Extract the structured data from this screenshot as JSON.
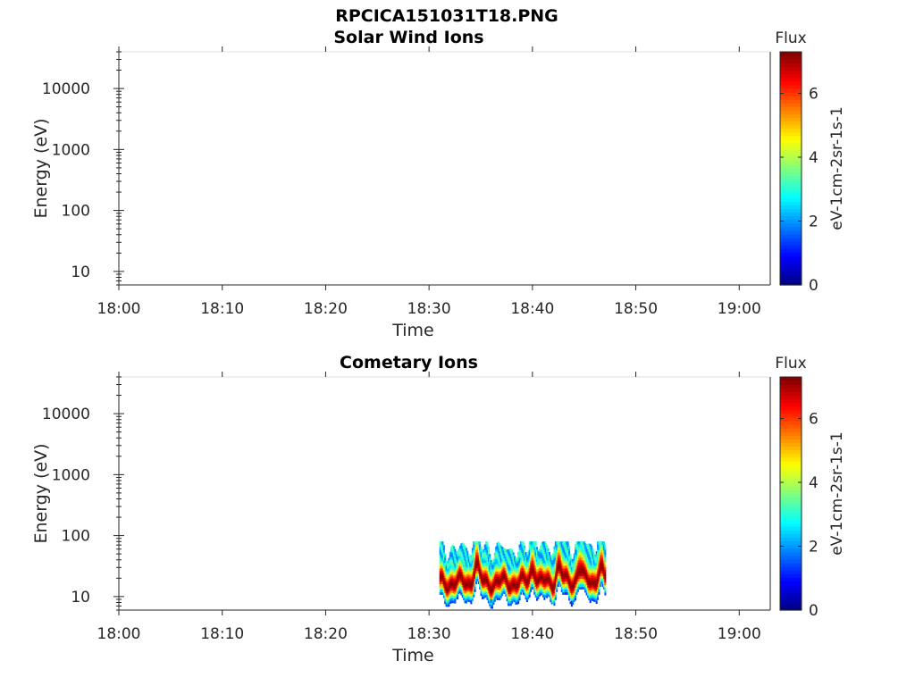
{
  "figure_title": "RPCICA151031T18.PNG",
  "chart_data": [
    {
      "type": "heatmap",
      "title": "Solar Wind Ions",
      "xlabel": "Time",
      "ylabel": "Energy (eV)",
      "x_ticks": [
        "18:00",
        "18:10",
        "18:20",
        "18:30",
        "18:40",
        "18:50",
        "19:00"
      ],
      "x_range_minutes": [
        0,
        63
      ],
      "y_scale": "log",
      "y_range": [
        6,
        40000
      ],
      "y_ticks": [
        {
          "value": 10,
          "label": "10"
        },
        {
          "value": 100,
          "label": "100"
        },
        {
          "value": 1000,
          "label": "1000"
        },
        {
          "value": 10000,
          "label": "10000"
        }
      ],
      "colorbar": {
        "title": "Flux",
        "label": "eV-1cm-2sr-1s-1",
        "range": [
          0,
          7.3
        ],
        "ticks": [
          "0",
          "2",
          "4",
          "6"
        ],
        "colormap": "jet"
      },
      "data": "empty"
    },
    {
      "type": "heatmap",
      "title": "Cometary Ions",
      "xlabel": "Time",
      "ylabel": "Energy (eV)",
      "x_ticks": [
        "18:00",
        "18:10",
        "18:20",
        "18:30",
        "18:40",
        "18:50",
        "19:00"
      ],
      "x_range_minutes": [
        0,
        63
      ],
      "y_scale": "log",
      "y_range": [
        6,
        40000
      ],
      "y_ticks": [
        {
          "value": 10,
          "label": "10"
        },
        {
          "value": 100,
          "label": "100"
        },
        {
          "value": 1000,
          "label": "1000"
        },
        {
          "value": 10000,
          "label": "10000"
        }
      ],
      "colorbar": {
        "title": "Flux",
        "label": "eV-1cm-2sr-1s-1",
        "range": [
          0,
          7.3
        ],
        "ticks": [
          "0",
          "2",
          "4",
          "6"
        ],
        "colormap": "jet"
      },
      "data": {
        "time_range_minutes": [
          31,
          47
        ],
        "peak_energy_eV": 17,
        "peak_flux": 7.2,
        "spike_times_minutes": [
          34.5,
          40,
          42.5,
          44.5,
          46.5
        ],
        "max_energy_eV": 80
      }
    }
  ]
}
